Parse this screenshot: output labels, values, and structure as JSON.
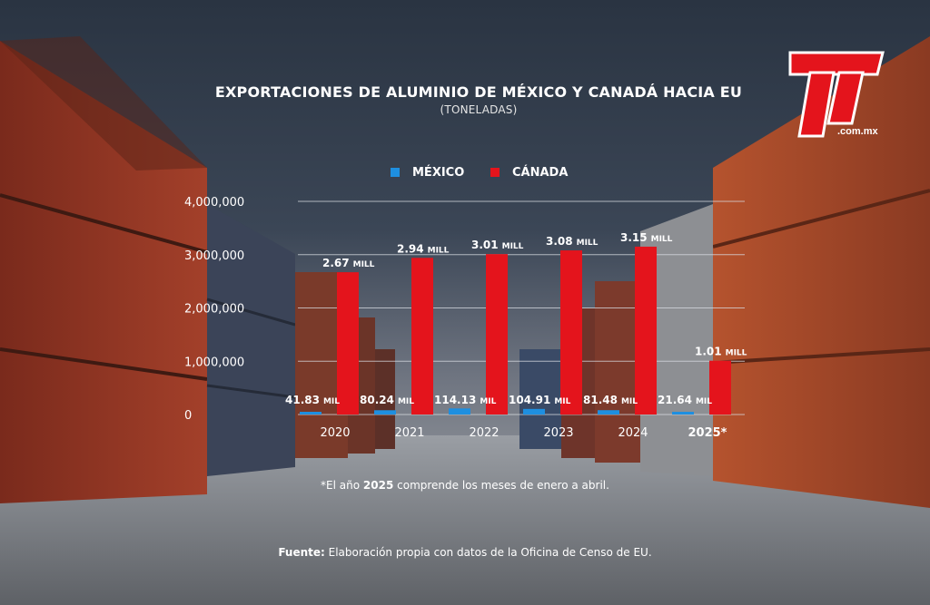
{
  "colors": {
    "mexico": "#1e8fe0",
    "canada": "#e4141c",
    "text": "#ffffff",
    "grid": "#d9dde3"
  },
  "logo": {
    "text_main": "TyT",
    "text_sub": ".com.mx"
  },
  "chart_data": {
    "type": "bar",
    "title": "EXPORTACIONES DE ALUMINIO DE MÉXICO Y CANADÁ HACIA EU",
    "subtitle": "(TONELADAS)",
    "categories": [
      "2020",
      "2021",
      "2022",
      "2023",
      "2024",
      "2025*"
    ],
    "ylim": [
      0,
      4000000
    ],
    "yticks": [
      "4,000,000",
      "3,000,000",
      "2,000,000",
      "1,000,000",
      "0"
    ],
    "grid": true,
    "legend_position": "top",
    "series": [
      {
        "name": "MÉXICO",
        "values": [
          41830,
          80240,
          114130,
          104910,
          81480,
          21640
        ],
        "labels": [
          {
            "num": "41.83",
            "unit": "MIL"
          },
          {
            "num": "80.24",
            "unit": "MIL"
          },
          {
            "num": "114.13",
            "unit": "MIL"
          },
          {
            "num": "104.91",
            "unit": "MIL"
          },
          {
            "num": "81.48",
            "unit": "MIL"
          },
          {
            "num": "21.64",
            "unit": "MIL"
          }
        ]
      },
      {
        "name": "CÁNADA",
        "values": [
          2670000,
          2940000,
          3010000,
          3080000,
          3150000,
          1010000
        ],
        "labels": [
          {
            "num": "2.67",
            "unit": "MILL"
          },
          {
            "num": "2.94",
            "unit": "MILL"
          },
          {
            "num": "3.01",
            "unit": "MILL"
          },
          {
            "num": "3.08",
            "unit": "MILL"
          },
          {
            "num": "3.15",
            "unit": "MILL"
          },
          {
            "num": "1.01",
            "unit": "MILL"
          }
        ]
      }
    ]
  },
  "footnote": {
    "prefix": "*El año ",
    "year": "2025",
    "suffix": " comprende los meses de enero a abril."
  },
  "source": {
    "label": "Fuente:",
    "text": " Elaboración propia con datos de la Oficina de Censo de EU."
  }
}
